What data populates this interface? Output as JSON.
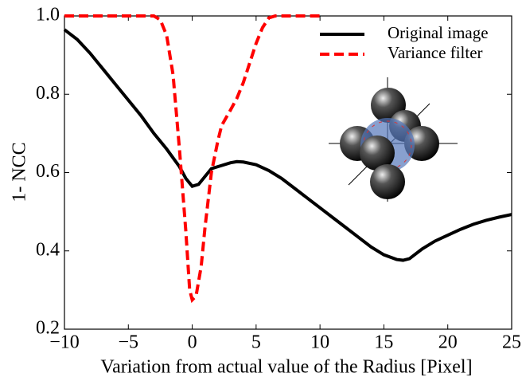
{
  "chart_data": {
    "type": "line",
    "xlabel": "Variation from actual value of the Radius [Pixel]",
    "ylabel": "1- NCC",
    "xlim": [
      -10,
      25
    ],
    "ylim": [
      0.2,
      1.0
    ],
    "xticks": [
      {
        "value": -10,
        "label": "−10"
      },
      {
        "value": -5,
        "label": "−5"
      },
      0,
      5,
      10,
      15,
      20,
      25
    ],
    "yticks": [
      0.2,
      0.4,
      0.6,
      0.8,
      {
        "value": 1,
        "label": "1.0"
      }
    ],
    "legend": "upper right",
    "series": [
      {
        "name": "Original image",
        "color": "#000000",
        "dash": false,
        "x": [
          -10,
          -9,
          -8,
          -7,
          -6,
          -5,
          -4,
          -3,
          -2,
          -1,
          -0.5,
          0,
          0.5,
          1,
          1.5,
          2,
          3,
          3.5,
          4,
          5,
          6,
          7,
          8,
          9,
          10,
          11,
          12,
          13,
          14,
          15,
          16,
          16.5,
          17,
          18,
          19,
          20,
          21,
          22,
          23,
          24,
          25
        ],
        "values": [
          0.965,
          0.94,
          0.905,
          0.865,
          0.825,
          0.785,
          0.745,
          0.7,
          0.66,
          0.615,
          0.585,
          0.565,
          0.57,
          0.59,
          0.61,
          0.615,
          0.625,
          0.628,
          0.627,
          0.62,
          0.605,
          0.585,
          0.56,
          0.535,
          0.51,
          0.485,
          0.46,
          0.435,
          0.41,
          0.39,
          0.378,
          0.376,
          0.38,
          0.405,
          0.425,
          0.44,
          0.455,
          0.468,
          0.478,
          0.486,
          0.493
        ]
      },
      {
        "name": "Variance filter",
        "color": "#ff0000",
        "dash": true,
        "x": [
          -10,
          -3,
          -2.5,
          -2,
          -1.5,
          -1,
          -0.5,
          -0.2,
          0,
          0.3,
          0.7,
          1,
          1.5,
          2,
          2.3,
          3,
          3.5,
          4,
          4.5,
          5,
          5.5,
          6,
          6.5,
          10
        ],
        "values": [
          1.0,
          1.0,
          0.99,
          0.95,
          0.85,
          0.66,
          0.45,
          0.3,
          0.275,
          0.285,
          0.36,
          0.46,
          0.6,
          0.68,
          0.72,
          0.76,
          0.79,
          0.83,
          0.88,
          0.93,
          0.97,
          0.995,
          1.0,
          1.0
        ]
      }
    ]
  }
}
